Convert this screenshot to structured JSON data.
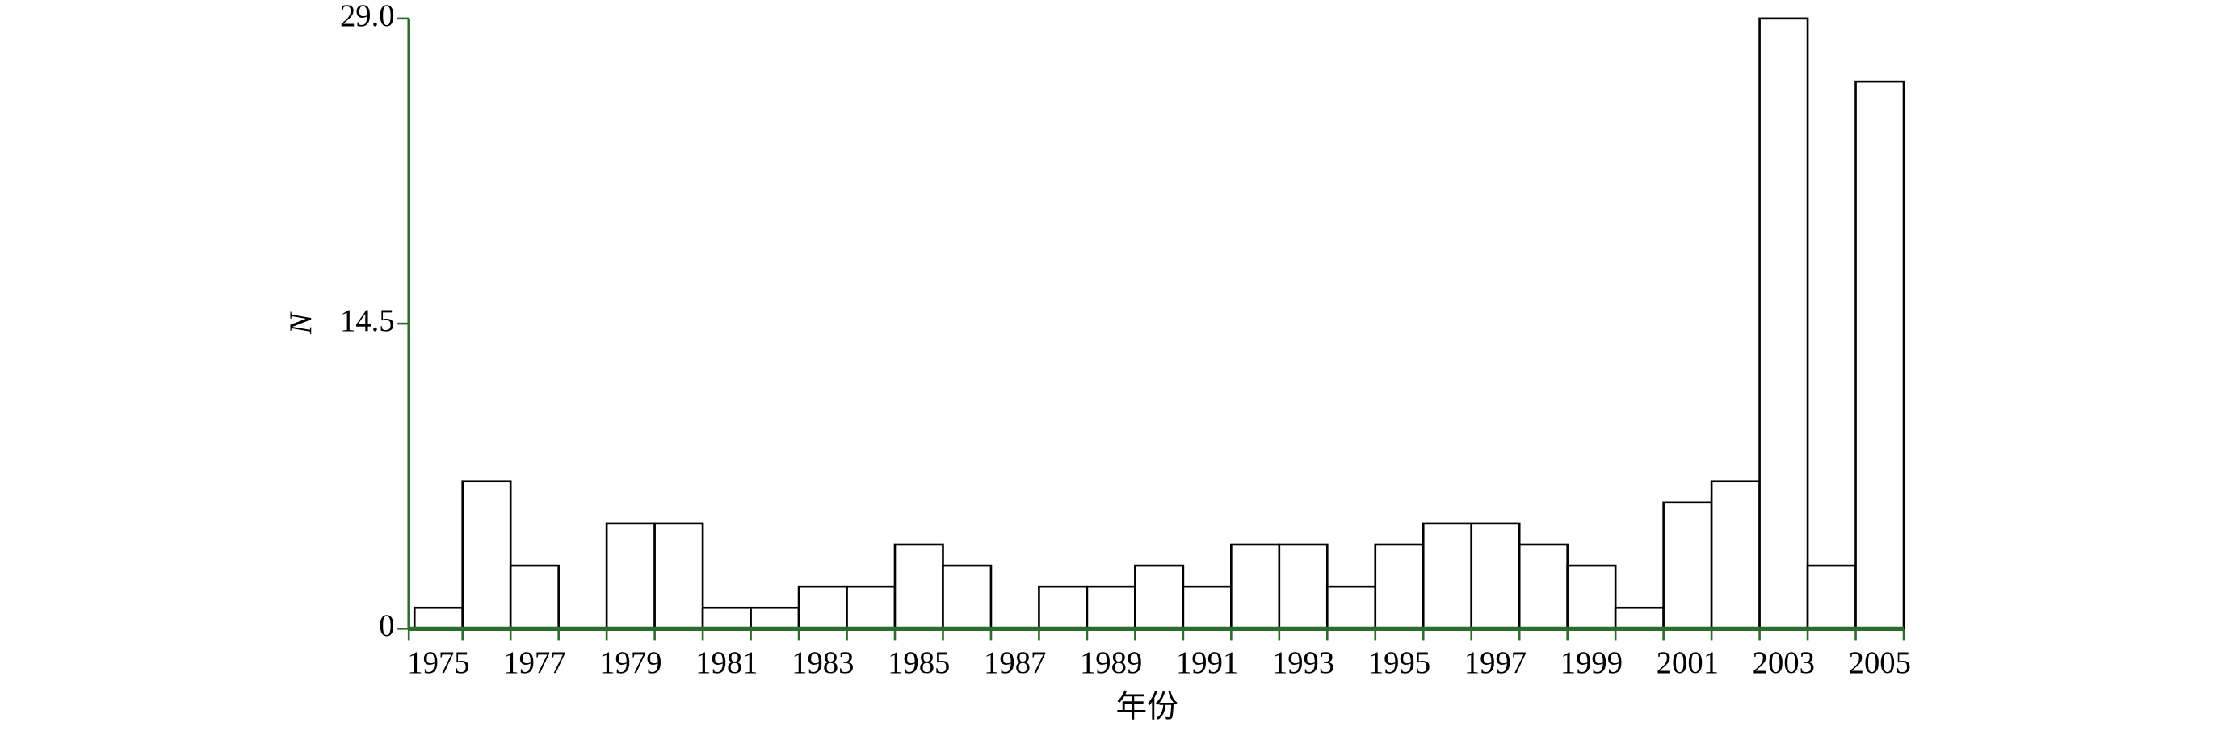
{
  "chart_data": {
    "type": "bar",
    "x_label": "年份",
    "y_label": "N",
    "categories": [
      "1975",
      null,
      "1977",
      null,
      "1979",
      null,
      "1981",
      null,
      "1983",
      null,
      "1985",
      null,
      "1987",
      null,
      "1989",
      null,
      "1991",
      null,
      "1993",
      null,
      "1995",
      null,
      "1997",
      null,
      "1999",
      null,
      "2001",
      null,
      "2003",
      null,
      "2005"
    ],
    "values": [
      1,
      7,
      3,
      0,
      5,
      5,
      1,
      1,
      2,
      2,
      4,
      3,
      0,
      2,
      2,
      3,
      2,
      4,
      4,
      2,
      4,
      5,
      5,
      4,
      3,
      1,
      6,
      7,
      29,
      3,
      26
    ],
    "color": "#ffffff",
    "edge_color": "#000000",
    "axis_color": "#2e6b2e",
    "ylim": [
      0,
      29
    ],
    "yticks": [
      0,
      14.5,
      {
        "value": 29,
        "label": "29.0"
      }
    ],
    "grid": false
  }
}
